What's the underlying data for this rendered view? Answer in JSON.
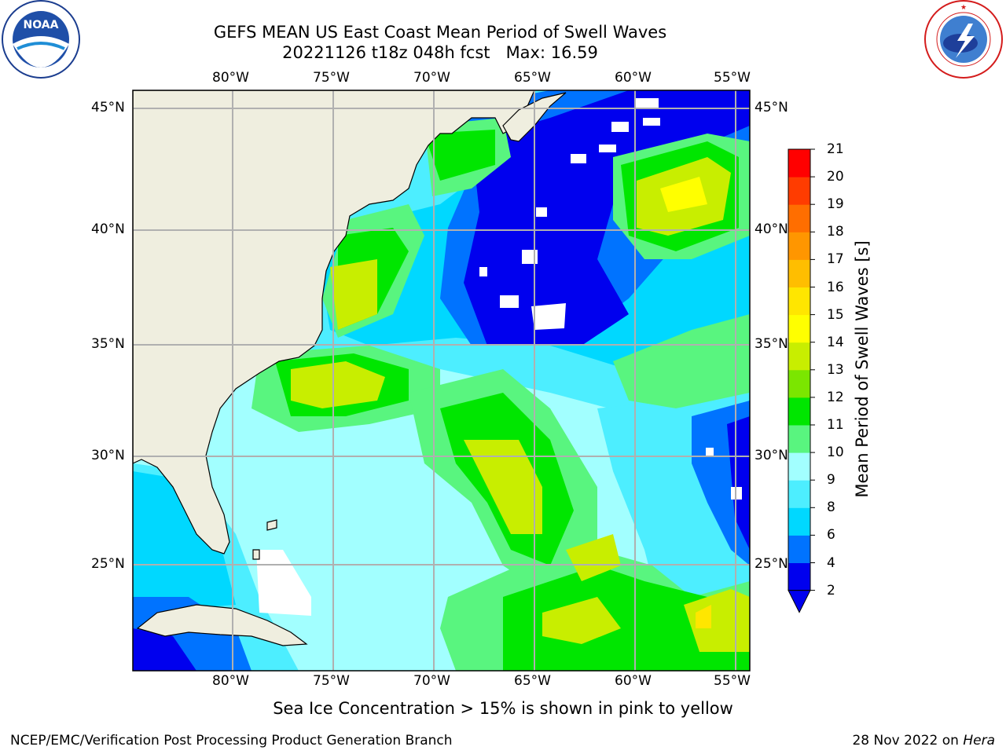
{
  "title": {
    "line1": "GEFS MEAN US East Coast Mean Period of Swell Waves",
    "line2": "20221126 t18z 048h fcst   Max: 16.59"
  },
  "map": {
    "lon_labels": [
      "80°W",
      "75°W",
      "70°W",
      "65°W",
      "60°W",
      "55°W"
    ],
    "lat_labels": [
      "45°N",
      "40°N",
      "35°N",
      "30°N",
      "25°N"
    ],
    "land_color": "#efeedf",
    "grid_color": "#b0b0b0"
  },
  "colorbar": {
    "label": "Mean Period of Swell Waves [s]",
    "ticks": [
      "2",
      "4",
      "6",
      "8",
      "9",
      "10",
      "11",
      "12",
      "13",
      "14",
      "15",
      "16",
      "17",
      "18",
      "19",
      "20",
      "21"
    ],
    "colors": [
      "#0000ee",
      "#0073ff",
      "#00d8ff",
      "#4deeff",
      "#a2ffff",
      "#59f57f",
      "#00e600",
      "#7be600",
      "#c8ee00",
      "#ffff00",
      "#ffe600",
      "#ffbe00",
      "#ff9600",
      "#ff6e00",
      "#ff3c00",
      "#ff0000"
    ],
    "underflow_color": "#0000ee"
  },
  "logos": {
    "noaa": {
      "text": "NOAA",
      "ring_text": "NATIONAL OCEANIC AND ATMOSPHERIC ADMINISTRATION · U.S. DEPARTMENT OF COMMERCE"
    },
    "nws": {
      "ring_text": "NATIONAL WEATHER SERVICE"
    }
  },
  "footer": {
    "note": "Sea Ice Concentration > 15% is shown in pink to yellow",
    "credit": "NCEP/EMC/Verification Post Processing Product Generation Branch",
    "date": "28 Nov 2022 on ",
    "machine": "Hera"
  }
}
